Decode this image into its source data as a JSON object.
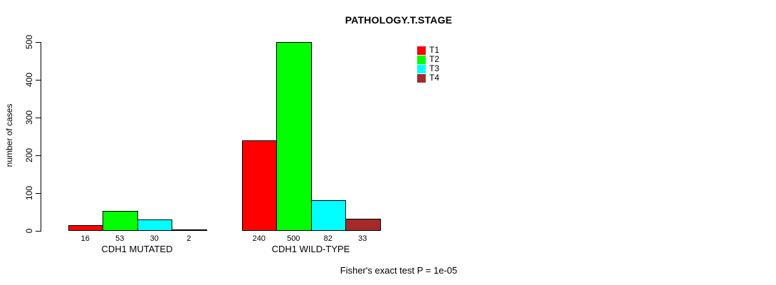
{
  "chart_data": {
    "type": "bar",
    "title": "PATHOLOGY.T.STAGE",
    "ylabel": "number of cases",
    "xlabel": "",
    "ylim": [
      0,
      500
    ],
    "yticks": [
      0,
      100,
      200,
      300,
      400,
      500
    ],
    "grid": false,
    "legend_position": "top-right-of-plot",
    "categories": [
      "CDH1 MUTATED",
      "CDH1 WILD-TYPE"
    ],
    "series": [
      {
        "name": "T1",
        "color": "#FF0000",
        "values": [
          16,
          240
        ]
      },
      {
        "name": "T2",
        "color": "#00FF00",
        "values": [
          53,
          500
        ]
      },
      {
        "name": "T3",
        "color": "#00FFFF",
        "values": [
          30,
          82
        ]
      },
      {
        "name": "T4",
        "color": "#A52A2A",
        "values": [
          2,
          33
        ]
      }
    ],
    "bar_value_labels": [
      [
        "16",
        "53",
        "30",
        "2"
      ],
      [
        "240",
        "500",
        "82",
        "33"
      ]
    ],
    "annotation": "Fisher's exact test P = 1e-05"
  }
}
